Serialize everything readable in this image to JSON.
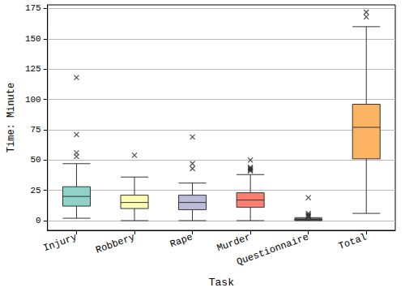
{
  "chart_data": {
    "type": "boxplot",
    "xlabel": "Task",
    "ylabel": "Time: Minute",
    "categories": [
      "Injury",
      "Robbery",
      "Rape",
      "Murder",
      "Questionnaire",
      "Total"
    ],
    "values": [
      [
        2,
        12,
        20,
        28,
        47
      ],
      [
        0,
        10,
        15,
        21,
        36
      ],
      [
        0,
        9,
        15,
        21,
        31
      ],
      [
        0,
        11,
        17,
        23,
        38
      ],
      [
        0,
        0.5,
        1,
        1.5,
        2.5
      ],
      [
        6,
        51,
        77,
        96,
        160
      ]
    ],
    "outliers": [
      [
        118,
        71,
        56,
        53
      ],
      [
        54
      ],
      [
        69,
        47,
        43
      ],
      [
        50,
        44,
        43,
        42,
        41
      ],
      [
        19,
        6,
        5,
        4,
        3.5
      ],
      [
        168,
        172
      ]
    ],
    "colors": [
      "#8dd3c7",
      "#ffffb3",
      "#bebada",
      "#fb8072",
      "#80b1d3",
      "#fdb462"
    ],
    "marker": "x",
    "ylim": [
      -8,
      178
    ],
    "yticks": [
      0,
      25,
      50,
      75,
      100,
      125,
      150,
      175
    ],
    "grid": true
  }
}
